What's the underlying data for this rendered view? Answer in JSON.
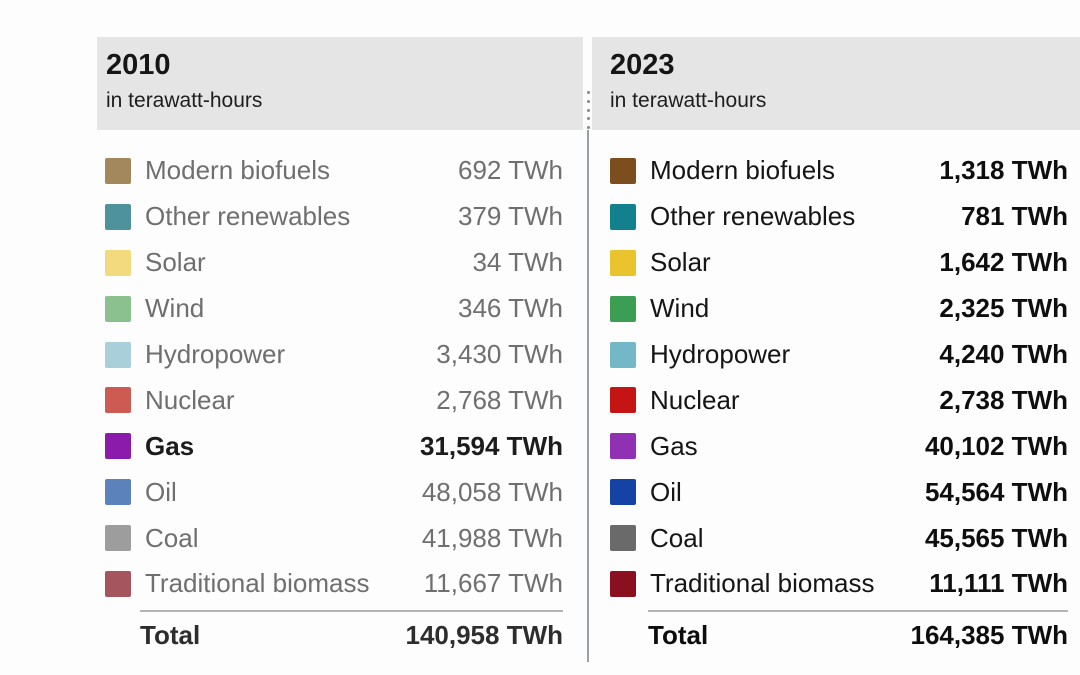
{
  "panels": [
    {
      "year": "2010",
      "subtitle": "in terawatt-hours",
      "rows": [
        {
          "label": "Modern biofuels",
          "value": "692 TWh",
          "color": "#a3875d",
          "highlight": false
        },
        {
          "label": "Other renewables",
          "value": "379 TWh",
          "color": "#4e939b",
          "highlight": false
        },
        {
          "label": "Solar",
          "value": "34 TWh",
          "color": "#f3da7e",
          "highlight": false
        },
        {
          "label": "Wind",
          "value": "346 TWh",
          "color": "#8ac18f",
          "highlight": false
        },
        {
          "label": "Hydropower",
          "value": "3,430 TWh",
          "color": "#a8cfda",
          "highlight": false
        },
        {
          "label": "Nuclear",
          "value": "2,768 TWh",
          "color": "#cd5b54",
          "highlight": false
        },
        {
          "label": "Gas",
          "value": "31,594 TWh",
          "color": "#8b1cab",
          "highlight": true
        },
        {
          "label": "Oil",
          "value": "48,058 TWh",
          "color": "#5b82bb",
          "highlight": false
        },
        {
          "label": "Coal",
          "value": "41,988 TWh",
          "color": "#9d9d9d",
          "highlight": false
        },
        {
          "label": "Traditional biomass",
          "value": "11,667 TWh",
          "color": "#a4555e",
          "highlight": false
        }
      ],
      "total_label": "Total",
      "total_value": "140,958 TWh"
    },
    {
      "year": "2023",
      "subtitle": "in terawatt-hours",
      "rows": [
        {
          "label": "Modern biofuels",
          "value": "1,318 TWh",
          "color": "#7d4e1d",
          "highlight": false
        },
        {
          "label": "Other renewables",
          "value": "781 TWh",
          "color": "#12808d",
          "highlight": false
        },
        {
          "label": "Solar",
          "value": "1,642 TWh",
          "color": "#e9c42d",
          "highlight": false
        },
        {
          "label": "Wind",
          "value": "2,325 TWh",
          "color": "#3b9e52",
          "highlight": false
        },
        {
          "label": "Hydropower",
          "value": "4,240 TWh",
          "color": "#74b7c6",
          "highlight": false
        },
        {
          "label": "Nuclear",
          "value": "2,738 TWh",
          "color": "#c51414",
          "highlight": false
        },
        {
          "label": "Gas",
          "value": "40,102 TWh",
          "color": "#9031b4",
          "highlight": false
        },
        {
          "label": "Oil",
          "value": "54,564 TWh",
          "color": "#1442a5",
          "highlight": false
        },
        {
          "label": "Coal",
          "value": "45,565 TWh",
          "color": "#6a6a6a",
          "highlight": false
        },
        {
          "label": "Traditional biomass",
          "value": "11,111 TWh",
          "color": "#8a0f1f",
          "highlight": false
        }
      ],
      "total_label": "Total",
      "total_value": "164,385 TWh"
    }
  ],
  "colors": {
    "header_band": "#e5e5e5",
    "muted_text": "#6f6f6f",
    "dark_text": "#0e0e0e",
    "divider": "#9aa0a5"
  },
  "chart_data": {
    "type": "table",
    "unit": "TWh",
    "categories": [
      "Modern biofuels",
      "Other renewables",
      "Solar",
      "Wind",
      "Hydropower",
      "Nuclear",
      "Gas",
      "Oil",
      "Coal",
      "Traditional biomass"
    ],
    "series": [
      {
        "name": "2010",
        "values": [
          692,
          379,
          34,
          346,
          3430,
          2768,
          31594,
          48058,
          41988,
          11667
        ],
        "total": 140958
      },
      {
        "name": "2023",
        "values": [
          1318,
          781,
          1642,
          2325,
          4240,
          2738,
          40102,
          54564,
          45565,
          11111
        ],
        "total": 164385
      }
    ],
    "highlighted": {
      "series": "2010",
      "category": "Gas"
    },
    "legend_position": "inline-left",
    "notes": "Two side-by-side energy consumption tables separated by a draggable comparison divider"
  }
}
